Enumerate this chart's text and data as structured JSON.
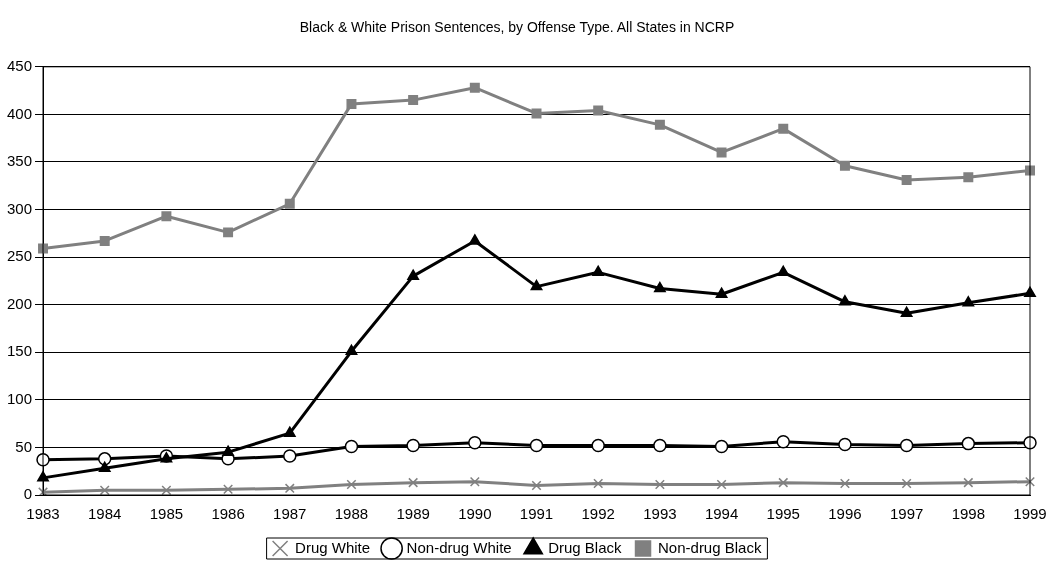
{
  "chart_data": {
    "type": "line",
    "title": "Black & White Prison Sentences, by Offense Type. All States in NCRP",
    "categories": [
      "1983",
      "1984",
      "1985",
      "1986",
      "1987",
      "1988",
      "1989",
      "1990",
      "1991",
      "1992",
      "1993",
      "1994",
      "1995",
      "1996",
      "1997",
      "1998",
      "1999"
    ],
    "series": [
      {
        "name": "Drug White",
        "color": "#808080",
        "marker": "cross",
        "values": [
          3,
          5,
          5,
          6,
          7,
          11,
          13,
          14,
          10,
          12,
          11,
          11,
          13,
          12,
          12,
          13,
          14
        ]
      },
      {
        "name": "Non-drug White",
        "color": "#000000",
        "marker": "circle",
        "values": [
          37,
          38,
          41,
          38,
          41,
          51,
          52,
          55,
          52,
          52,
          52,
          51,
          56,
          53,
          52,
          54,
          55
        ]
      },
      {
        "name": "Drug Black",
        "color": "#000000",
        "marker": "triangle",
        "values": [
          18,
          28,
          38,
          45,
          65,
          151,
          230,
          267,
          219,
          234,
          217,
          211,
          234,
          203,
          191,
          202,
          212
        ]
      },
      {
        "name": "Non-drug Black",
        "color": "#808080",
        "marker": "square",
        "values": [
          259,
          267,
          293,
          276,
          306,
          411,
          415,
          428,
          401,
          404,
          389,
          360,
          385,
          346,
          331,
          334,
          341
        ]
      }
    ],
    "ylim": [
      0,
      450
    ],
    "yticks": [
      0,
      50,
      100,
      150,
      200,
      250,
      300,
      350,
      400,
      450
    ],
    "grid": "y",
    "legend": "bottom",
    "line_style": "solid"
  }
}
